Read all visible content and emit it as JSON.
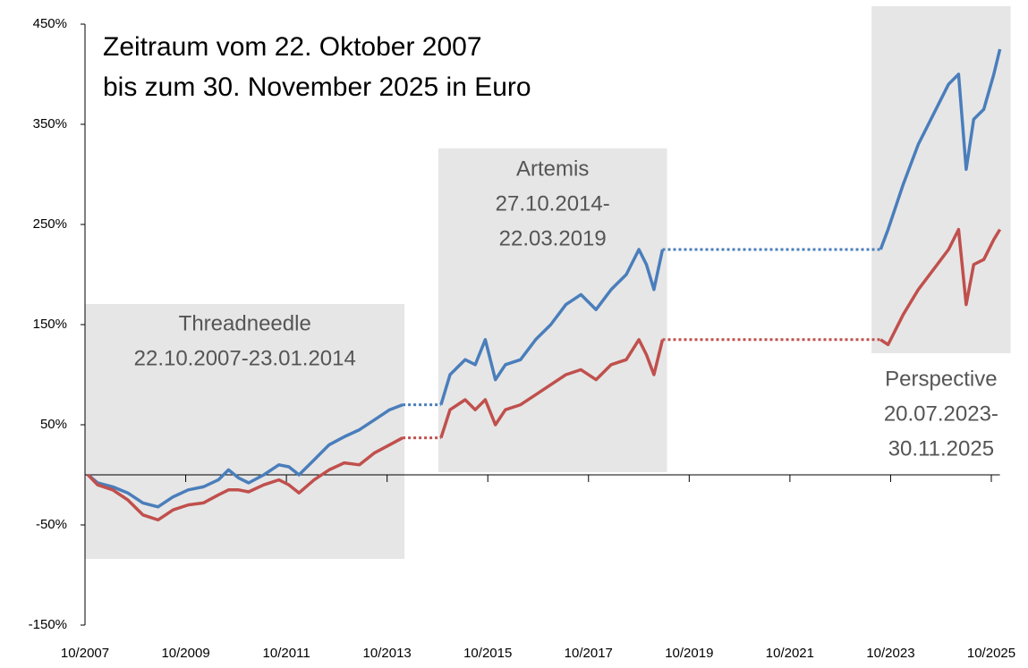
{
  "chart_data": {
    "type": "line",
    "title": [
      "Zeitraum vom 22. Oktober 2007",
      "bis zum 30. November 2025 in Euro"
    ],
    "regions": [
      {
        "label": [
          "Threadneedle",
          "22.10.2007-23.01.2014"
        ],
        "start": 2007.81,
        "end": 2014.06
      },
      {
        "label": [
          "Artemis",
          "27.10.2014-",
          "22.03.2019"
        ],
        "start": 2014.82,
        "end": 2019.22
      },
      {
        "label": [
          "Perspective",
          "20.07.2023-",
          "30.11.2025"
        ],
        "start": 2023.55,
        "end": 2025.92
      }
    ],
    "x": [
      2007.81,
      2008.0,
      2008.3,
      2008.6,
      2008.9,
      2009.2,
      2009.5,
      2009.8,
      2010.1,
      2010.4,
      2010.6,
      2010.8,
      2011.0,
      2011.3,
      2011.6,
      2011.8,
      2012.0,
      2012.3,
      2012.6,
      2012.9,
      2013.2,
      2013.5,
      2013.8,
      2014.06,
      2014.82,
      2015.0,
      2015.3,
      2015.5,
      2015.7,
      2015.9,
      2016.1,
      2016.4,
      2016.7,
      2017.0,
      2017.3,
      2017.6,
      2017.9,
      2018.2,
      2018.5,
      2018.75,
      2018.9,
      2019.05,
      2019.22,
      2023.55,
      2023.7,
      2024.0,
      2024.3,
      2024.6,
      2024.9,
      2025.1,
      2025.25,
      2025.4,
      2025.6,
      2025.8,
      2025.92
    ],
    "series": [
      {
        "color": "#4a7ebb",
        "values": [
          0,
          -8,
          -12,
          -18,
          -28,
          -32,
          -22,
          -15,
          -12,
          -5,
          5,
          -3,
          -8,
          0,
          10,
          8,
          0,
          15,
          30,
          38,
          45,
          55,
          65,
          70,
          70,
          100,
          115,
          110,
          135,
          95,
          110,
          115,
          135,
          150,
          170,
          180,
          165,
          185,
          200,
          225,
          210,
          185,
          225,
          225,
          245,
          290,
          330,
          360,
          390,
          400,
          305,
          355,
          365,
          400,
          425
        ]
      },
      {
        "color": "#c0504d",
        "values": [
          0,
          -10,
          -15,
          -25,
          -40,
          -45,
          -35,
          -30,
          -28,
          -20,
          -15,
          -15,
          -17,
          -10,
          -5,
          -10,
          -18,
          -5,
          5,
          12,
          10,
          22,
          30,
          37,
          37,
          65,
          75,
          65,
          75,
          50,
          65,
          70,
          80,
          90,
          100,
          105,
          95,
          110,
          115,
          135,
          120,
          100,
          135,
          135,
          130,
          160,
          185,
          205,
          225,
          245,
          170,
          210,
          215,
          235,
          245
        ]
      }
    ],
    "xlim": [
      2007.75,
      2025.92
    ],
    "xticks": [
      {
        "value": 2007.75,
        "label": "10/2007"
      },
      {
        "value": 2009.75,
        "label": "10/2009"
      },
      {
        "value": 2011.75,
        "label": "10/2011"
      },
      {
        "value": 2013.75,
        "label": "10/2013"
      },
      {
        "value": 2015.75,
        "label": "10/2015"
      },
      {
        "value": 2017.75,
        "label": "10/2017"
      },
      {
        "value": 2019.75,
        "label": "10/2019"
      },
      {
        "value": 2021.75,
        "label": "10/2021"
      },
      {
        "value": 2023.75,
        "label": "10/2023"
      },
      {
        "value": 2025.75,
        "label": "10/2025"
      }
    ],
    "ylim": [
      -150,
      450
    ],
    "yticks": [
      {
        "value": 450,
        "label": "450%"
      },
      {
        "value": 350,
        "label": "350%"
      },
      {
        "value": 250,
        "label": "250%"
      },
      {
        "value": 150,
        "label": "150%"
      },
      {
        "value": 50,
        "label": "50%"
      },
      {
        "value": -50,
        "label": "-50%"
      },
      {
        "value": -150,
        "label": "-150%"
      }
    ]
  }
}
